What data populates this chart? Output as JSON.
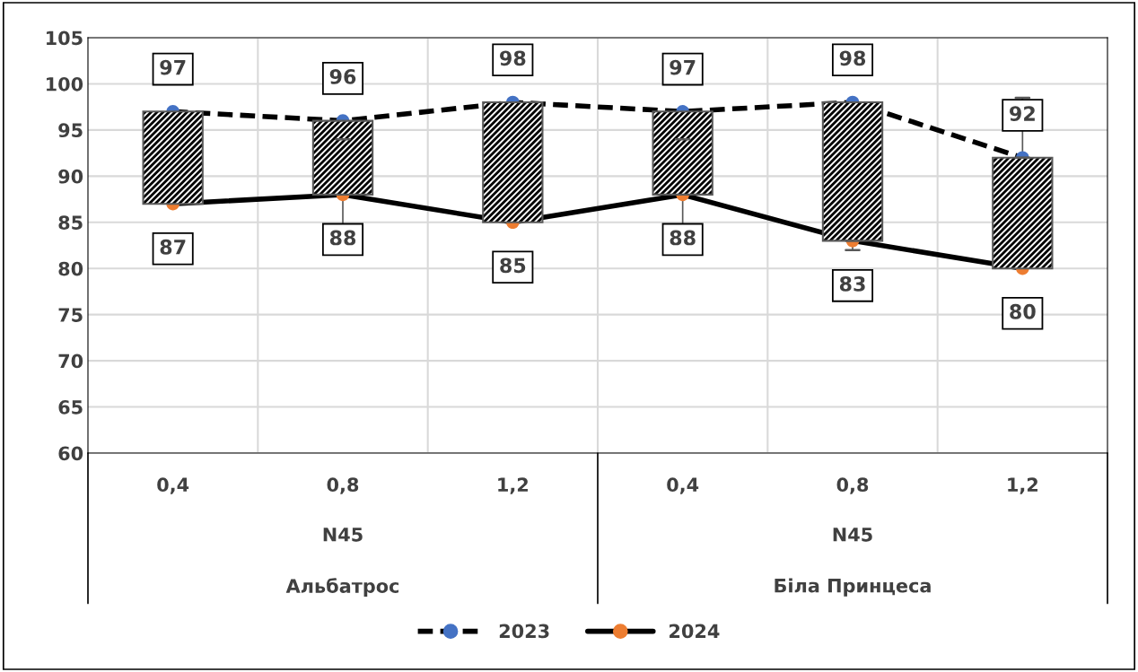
{
  "chart_data": {
    "type": "line",
    "categories": [
      "0,4",
      "0,8",
      "1,2",
      "0,4",
      "0,8",
      "1,2"
    ],
    "series": [
      {
        "name": "2023",
        "color": "#4472c4",
        "line_style": "dashed",
        "values": [
          97,
          96,
          98,
          97,
          98,
          92
        ],
        "value_labels": [
          "97",
          "96",
          "98",
          "97",
          "98",
          "92"
        ],
        "errors": [
          null,
          null,
          null,
          null,
          null,
          [
            92,
            98.5
          ]
        ]
      },
      {
        "name": "2024",
        "color": "#ed7d31",
        "line_style": "solid",
        "values": [
          87,
          88,
          85,
          88,
          83,
          80
        ],
        "value_labels": [
          "87",
          "88",
          "85",
          "88",
          "83",
          "80"
        ],
        "errors": [
          null,
          6,
          null,
          6,
          [
            82,
            83
          ],
          null
        ]
      },
      {
        "type": "bar",
        "color": "#000000",
        "base": [
          87,
          88,
          85,
          88,
          83,
          80
        ],
        "values": [
          10,
          8,
          13,
          9,
          15,
          12
        ]
      }
    ],
    "ylim": [
      60,
      105
    ],
    "yticks": [
      60,
      65,
      70,
      75,
      80,
      85,
      90,
      95,
      100,
      105
    ],
    "annotations": [
      "N45",
      "N45",
      "Альбатрос",
      "Біла Принцеса"
    ],
    "grid": true,
    "legend": "bottom",
    "marker": "circle"
  }
}
